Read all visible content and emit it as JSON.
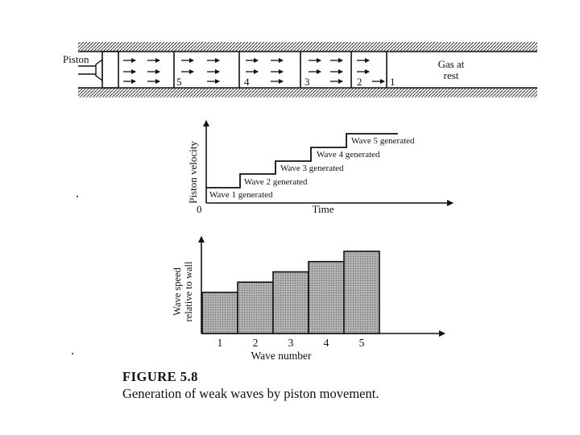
{
  "tube": {
    "piston_label": "Piston",
    "gas_label_line1": "Gas at",
    "gas_label_line2": "rest",
    "wave_labels": [
      "5",
      "4",
      "3",
      "2",
      "1"
    ]
  },
  "velocity_diagram": {
    "y_axis_label": "Piston velocity",
    "x_axis_label": "Time",
    "origin_label": "0",
    "step_labels": [
      "Wave 1 generated",
      "Wave 2 generated",
      "Wave 3 generated",
      "Wave 4 generated",
      "Wave 5 generated"
    ]
  },
  "chart_data": {
    "type": "bar",
    "categories": [
      "1",
      "2",
      "3",
      "4",
      "5"
    ],
    "values": [
      1,
      1.25,
      1.5,
      1.75,
      2
    ],
    "xlabel": "Wave number",
    "ylabel_line1": "Wave speed",
    "ylabel_line2": "relative to wall"
  },
  "caption": {
    "figure_number": "FIGURE 5.8",
    "text": "Generation of weak waves by piston movement."
  },
  "colors": {
    "ink": "#111111",
    "bar_fill": "#a9a9a9"
  }
}
